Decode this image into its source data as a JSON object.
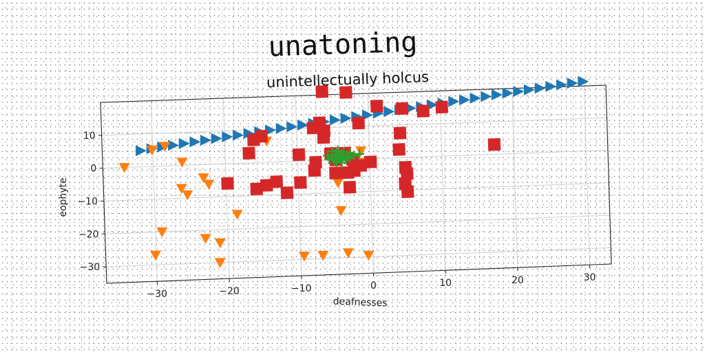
{
  "chart_data": {
    "type": "scatter",
    "title": "unatoning",
    "subtitle": "unintellectually holcus",
    "xlabel": "deafnesses",
    "ylabel": "eophyte",
    "xlim": [
      -37,
      33
    ],
    "ylim": [
      -35,
      20
    ],
    "x_ticks": [
      -30,
      -20,
      -10,
      0,
      10,
      20,
      30
    ],
    "y_ticks": [
      10,
      0,
      -10,
      -20,
      -30
    ],
    "x_tick_labels": [
      "−30",
      "−20",
      "−10",
      "0",
      "10",
      "20",
      "30"
    ],
    "y_tick_labels": [
      "10",
      "0",
      "−10",
      "−20",
      "−30"
    ],
    "grid": true,
    "series": [
      {
        "marker": "triangle-right",
        "color": "#1f77b4",
        "points": [
          [
            -31.6,
            4.9
          ],
          [
            -30.1,
            5.4
          ],
          [
            -28.6,
            5.8
          ],
          [
            -27.1,
            6.2
          ],
          [
            -25.6,
            6.6
          ],
          [
            -24.1,
            7.0
          ],
          [
            -22.6,
            7.4
          ],
          [
            -21.1,
            7.8
          ],
          [
            -19.6,
            8.2
          ],
          [
            -18.1,
            8.6
          ],
          [
            -16.6,
            9.0
          ],
          [
            -15.1,
            9.4
          ],
          [
            -13.6,
            9.8
          ],
          [
            -12.1,
            10.2
          ],
          [
            -10.6,
            10.6
          ],
          [
            -9.1,
            11.0
          ],
          [
            -7.6,
            11.4
          ],
          [
            -6.1,
            11.8
          ],
          [
            -4.6,
            12.2
          ],
          [
            -3.1,
            12.6
          ],
          [
            -1.6,
            13.0
          ],
          [
            -0.1,
            13.4
          ],
          [
            1.4,
            13.8
          ],
          [
            2.9,
            14.2
          ],
          [
            4.4,
            14.6
          ],
          [
            5.9,
            15.0
          ],
          [
            7.4,
            15.4
          ],
          [
            8.9,
            15.8
          ],
          [
            10.4,
            16.2
          ],
          [
            11.9,
            16.6
          ],
          [
            13.4,
            17.0
          ],
          [
            14.9,
            17.4
          ],
          [
            16.4,
            17.8
          ],
          [
            17.9,
            18.2
          ],
          [
            19.4,
            18.6
          ],
          [
            20.9,
            19.0
          ],
          [
            22.4,
            19.4
          ],
          [
            23.9,
            19.8
          ],
          [
            25.4,
            20.2
          ],
          [
            26.9,
            20.6
          ],
          [
            28.4,
            21.0
          ],
          [
            29.9,
            21.4
          ]
        ]
      },
      {
        "marker": "triangle-down",
        "color": "#ff7f0e",
        "points": [
          [
            -34,
            0
          ],
          [
            -30.1,
            5
          ],
          [
            -28.3,
            6
          ],
          [
            -26,
            1
          ],
          [
            -26.2,
            -7
          ],
          [
            -25.4,
            -9
          ],
          [
            -23.1,
            -4
          ],
          [
            -22.4,
            -6
          ],
          [
            -29.1,
            -20
          ],
          [
            -30.1,
            -27
          ],
          [
            -23.1,
            -22.5
          ],
          [
            -21.1,
            -24
          ],
          [
            -21.2,
            -30
          ],
          [
            -18.6,
            -15.5
          ],
          [
            -14.2,
            6.5
          ],
          [
            -9.5,
            -29
          ],
          [
            -6.9,
            -29
          ],
          [
            -4.5,
            -7
          ],
          [
            -4.2,
            -15.5
          ],
          [
            -5.6,
            1
          ],
          [
            -3.4,
            -28.5
          ],
          [
            -0.6,
            -29.5
          ],
          [
            -1.2,
            2.5
          ],
          [
            -1.1,
            -1
          ]
        ]
      },
      {
        "marker": "square",
        "color": "#d62728",
        "points": [
          [
            -6.3,
            21
          ],
          [
            -3,
            20.5
          ],
          [
            1.2,
            16
          ],
          [
            4.7,
            15
          ],
          [
            7.6,
            14
          ],
          [
            10.2,
            15
          ],
          [
            -1.4,
            11
          ],
          [
            -6.8,
            11.5
          ],
          [
            -7.7,
            10
          ],
          [
            -6.2,
            9
          ],
          [
            -6.3,
            7
          ],
          [
            -14.9,
            8
          ],
          [
            -16,
            7
          ],
          [
            -16.7,
            3
          ],
          [
            -9.8,
            2
          ],
          [
            -7.5,
            -0.5
          ],
          [
            -7.7,
            -3
          ],
          [
            -5.4,
            2
          ],
          [
            -4.7,
            0
          ],
          [
            -3.4,
            2
          ],
          [
            -2.4,
            0
          ],
          [
            -1.3,
            -2
          ],
          [
            0.1,
            -1
          ],
          [
            -4.8,
            -4
          ],
          [
            -3.1,
            -4
          ],
          [
            -2.2,
            -3.5
          ],
          [
            4.3,
            7.5
          ],
          [
            4.1,
            2.5
          ],
          [
            4.9,
            -3
          ],
          [
            5.1,
            -5
          ],
          [
            4.8,
            -8
          ],
          [
            5.1,
            -10.5
          ],
          [
            -19.8,
            -6
          ],
          [
            -15.8,
            -8
          ],
          [
            -14.4,
            -7
          ],
          [
            -13,
            -6
          ],
          [
            -9.7,
            -6.5
          ],
          [
            -11.6,
            -9.5
          ],
          [
            -2.9,
            -8.5
          ],
          [
            17.3,
            3
          ]
        ]
      },
      {
        "marker": "plus",
        "color": "#2ca02c",
        "points": [
          [
            -5.8,
            1.4
          ],
          [
            -5.2,
            1.5
          ],
          [
            -4.6,
            1.8
          ],
          [
            -4.9,
            0.6
          ],
          [
            -4.4,
            0.9
          ],
          [
            -3.8,
            0.7
          ],
          [
            -3.6,
            1.3
          ],
          [
            -3.1,
            1.0
          ],
          [
            -5.6,
            0.2
          ],
          [
            -4.9,
            0.0
          ],
          [
            -4.3,
            0.3
          ],
          [
            -3.9,
            -0.2
          ],
          [
            -3.3,
            0.1
          ],
          [
            -2.8,
            0.5
          ],
          [
            -4.6,
            -0.6
          ],
          [
            -3.9,
            -0.9
          ],
          [
            -2.2,
            1.1
          ],
          [
            -1.4,
            1.6
          ],
          [
            -5.2,
            2.6
          ],
          [
            -4.4,
            2.9
          ],
          [
            -3.6,
            2.4
          ],
          [
            -2.7,
            2.0
          ]
        ]
      }
    ]
  }
}
